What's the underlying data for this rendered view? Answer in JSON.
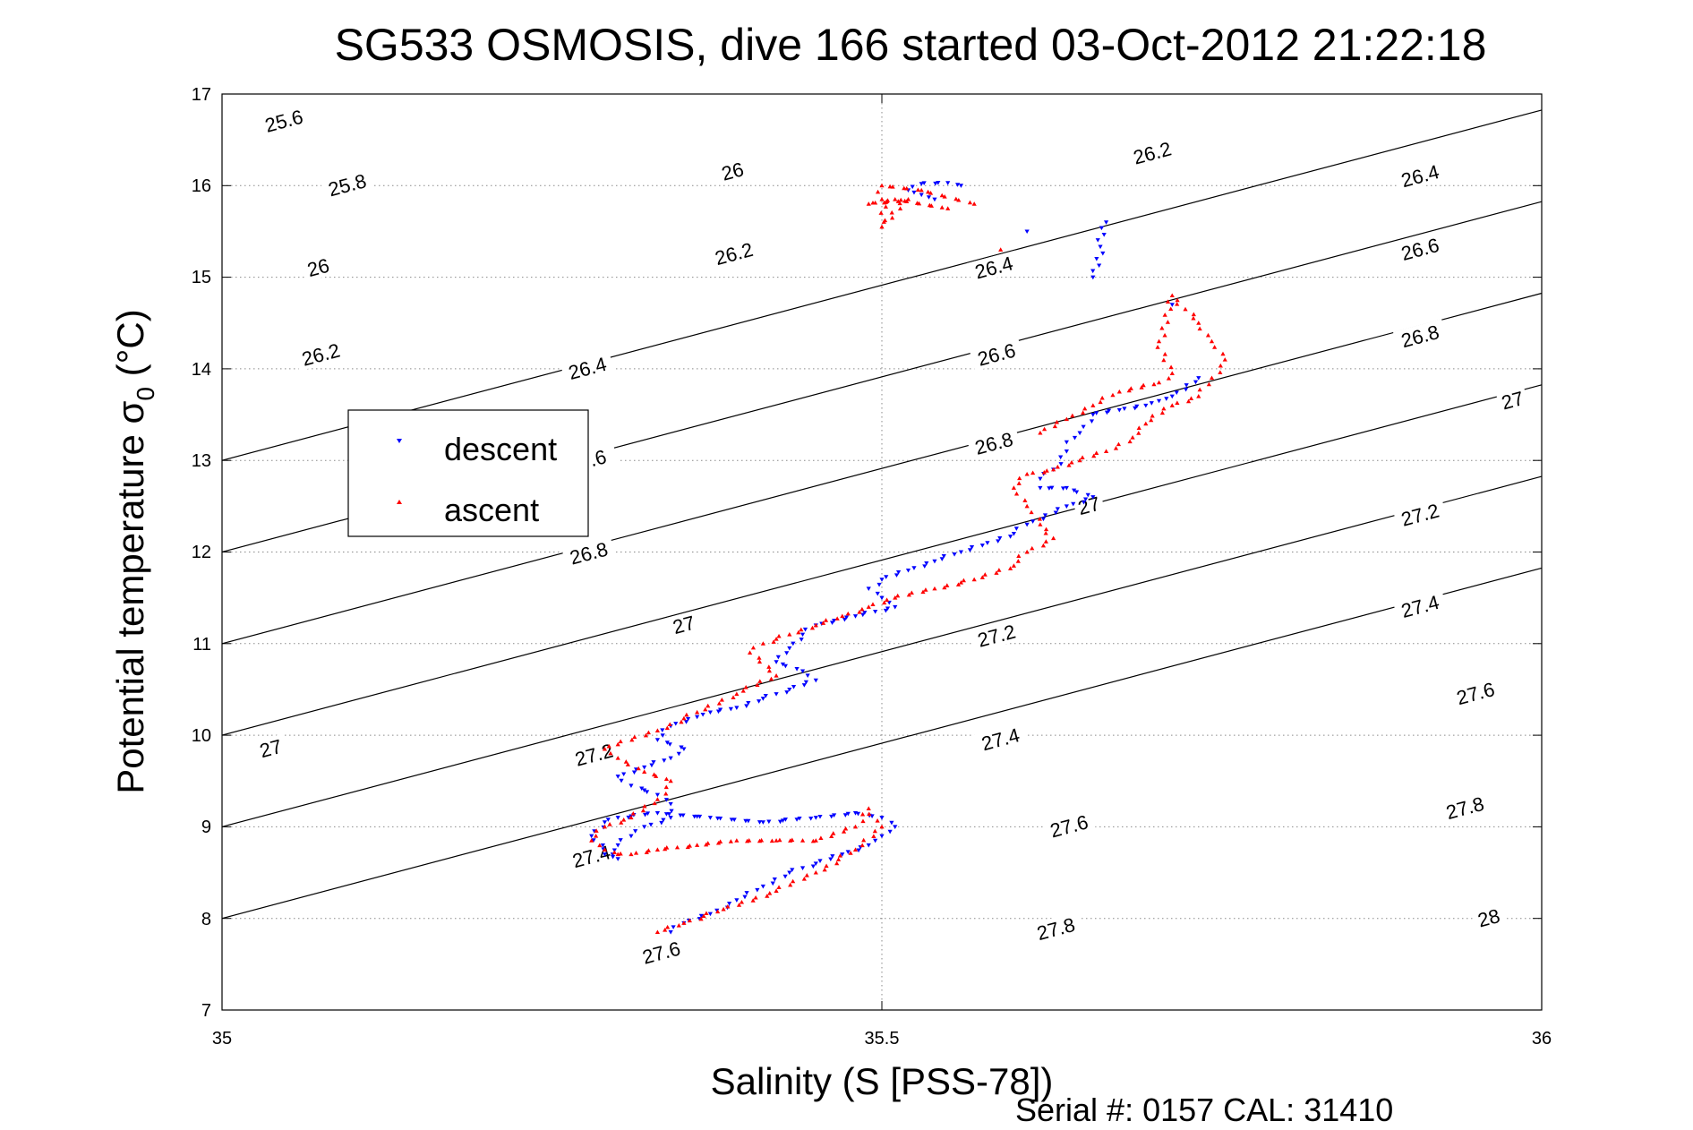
{
  "chart_data": {
    "type": "scatter",
    "title": "SG533 OSMOSIS, dive 166 started 03-Oct-2012 21:22:18",
    "xlabel": "Salinity (S [PSS-78])",
    "ylabel_main": "Potential temperature σ",
    "ylabel_sub": "0",
    "ylabel_unit": " (°C)",
    "xlim": [
      35,
      36
    ],
    "ylim": [
      7,
      17
    ],
    "xticks": [
      "35",
      "35.5",
      "36"
    ],
    "yticks": [
      "7",
      "8",
      "9",
      "10",
      "11",
      "12",
      "13",
      "14",
      "15",
      "16",
      "17"
    ],
    "grid": true,
    "legend_position": "upper-left",
    "footer": "Serial #: 0157  CAL: 31410",
    "density_contours": {
      "color": "#000000",
      "levels": [
        25.6,
        25.8,
        26,
        26.2,
        26.4,
        26.6,
        26.8,
        27,
        27.2,
        27.4,
        27.6,
        27.8,
        28
      ],
      "label_positions": [
        {
          "text": "25.6",
          "x": 35.047,
          "y": 16.7
        },
        {
          "text": "25.8",
          "x": 35.095,
          "y": 16.0
        },
        {
          "text": "26",
          "x": 35.073,
          "y": 15.1
        },
        {
          "text": "26.2",
          "x": 35.075,
          "y": 14.15
        },
        {
          "text": "26",
          "x": 35.387,
          "y": 16.15
        },
        {
          "text": "26.2",
          "x": 35.388,
          "y": 15.25
        },
        {
          "text": "26.4",
          "x": 35.277,
          "y": 14.0
        },
        {
          "text": "26.6",
          "x": 35.28,
          "y": 13.0
        },
        {
          "text": "26.8",
          "x": 35.278,
          "y": 11.98
        },
        {
          "text": "27",
          "x": 35.35,
          "y": 11.2
        },
        {
          "text": "27.2",
          "x": 35.282,
          "y": 9.78
        },
        {
          "text": "27.4",
          "x": 35.28,
          "y": 8.67
        },
        {
          "text": "27.6",
          "x": 35.333,
          "y": 7.62
        },
        {
          "text": "27",
          "x": 35.037,
          "y": 9.85
        },
        {
          "text": "26.2",
          "x": 35.705,
          "y": 16.35
        },
        {
          "text": "26.4",
          "x": 35.585,
          "y": 15.1
        },
        {
          "text": "26.6",
          "x": 35.587,
          "y": 14.15
        },
        {
          "text": "26.8",
          "x": 35.585,
          "y": 13.18
        },
        {
          "text": "27",
          "x": 35.657,
          "y": 12.5
        },
        {
          "text": "27.2",
          "x": 35.587,
          "y": 11.08
        },
        {
          "text": "27.4",
          "x": 35.59,
          "y": 9.95
        },
        {
          "text": "27.6",
          "x": 35.642,
          "y": 9.0
        },
        {
          "text": "27.8",
          "x": 35.632,
          "y": 7.88
        },
        {
          "text": "26.4",
          "x": 35.908,
          "y": 16.1
        },
        {
          "text": "26.6",
          "x": 35.908,
          "y": 15.3
        },
        {
          "text": "26.8",
          "x": 35.908,
          "y": 14.35
        },
        {
          "text": "27",
          "x": 35.978,
          "y": 13.65
        },
        {
          "text": "27.2",
          "x": 35.908,
          "y": 12.4
        },
        {
          "text": "27.4",
          "x": 35.908,
          "y": 11.4
        },
        {
          "text": "27.6",
          "x": 35.95,
          "y": 10.45
        },
        {
          "text": "27.8",
          "x": 35.942,
          "y": 9.2
        },
        {
          "text": "28",
          "x": 35.96,
          "y": 8.0
        },
        {
          "text": ".6",
          "x": 35.285,
          "y": 13.02
        }
      ]
    },
    "series": [
      {
        "name": "descent",
        "color": "#0000ff",
        "marker": "triangle-down",
        "x": [
          35.54,
          35.53,
          35.52,
          35.53,
          35.55,
          35.56,
          35.61,
          35.66,
          35.67,
          35.72,
          35.74,
          35.72,
          35.71,
          35.7,
          35.68,
          35.66,
          35.65,
          35.64,
          35.64,
          35.63,
          35.62,
          35.62,
          35.64,
          35.66,
          35.64,
          35.61,
          35.6,
          35.58,
          35.56,
          35.54,
          35.52,
          35.5,
          35.49,
          35.5,
          35.51,
          35.48,
          35.45,
          35.44,
          35.43,
          35.42,
          35.44,
          35.45,
          35.43,
          35.41,
          35.39,
          35.37,
          35.36,
          35.34,
          35.33,
          35.35,
          35.34,
          35.32,
          35.3,
          35.31,
          35.33,
          35.34,
          35.34,
          35.32,
          35.31,
          35.3,
          35.29,
          35.3,
          35.28,
          35.29,
          35.3,
          35.33,
          35.37,
          35.41,
          35.45,
          35.48,
          35.5,
          35.51,
          35.5,
          35.49,
          35.47,
          35.45,
          35.43,
          35.41,
          35.39,
          35.37,
          35.35,
          35.34
        ],
        "y": [
          15.85,
          15.9,
          15.95,
          16.02,
          16.03,
          16.0,
          15.5,
          15.0,
          15.6,
          14.7,
          13.9,
          13.7,
          13.65,
          13.6,
          13.55,
          13.5,
          13.3,
          13.2,
          13.1,
          12.9,
          12.8,
          12.7,
          12.7,
          12.6,
          12.5,
          12.3,
          12.2,
          12.1,
          12.0,
          11.9,
          11.8,
          11.7,
          11.6,
          11.5,
          11.4,
          11.3,
          11.2,
          11.1,
          10.95,
          10.8,
          10.7,
          10.6,
          10.5,
          10.4,
          10.3,
          10.25,
          10.2,
          10.1,
          9.95,
          9.85,
          9.75,
          9.65,
          9.55,
          9.45,
          9.35,
          9.25,
          9.1,
          9.0,
          8.9,
          8.8,
          8.7,
          8.65,
          8.9,
          9.05,
          9.1,
          9.15,
          9.1,
          9.05,
          9.1,
          9.15,
          9.1,
          9.0,
          8.9,
          8.8,
          8.7,
          8.6,
          8.5,
          8.35,
          8.2,
          8.05,
          7.95,
          7.85
        ]
      },
      {
        "name": "ascent",
        "color": "#ff0000",
        "marker": "triangle-up",
        "x": [
          35.33,
          35.35,
          35.38,
          35.42,
          35.45,
          35.48,
          35.5,
          35.49,
          35.48,
          35.45,
          35.42,
          35.39,
          35.36,
          35.33,
          35.31,
          35.3,
          35.29,
          35.28,
          35.29,
          35.31,
          35.33,
          35.34,
          35.32,
          35.3,
          35.29,
          35.3,
          35.33,
          35.36,
          35.39,
          35.42,
          35.4,
          35.41,
          35.43,
          35.45,
          35.47,
          35.49,
          35.51,
          35.54,
          35.57,
          35.6,
          35.61,
          35.63,
          35.62,
          35.61,
          35.6,
          35.61,
          35.63,
          35.65,
          35.67,
          35.69,
          35.7,
          35.72,
          35.74,
          35.75,
          35.76,
          35.75,
          35.74,
          35.72,
          35.71,
          35.72,
          35.71,
          35.68,
          35.66,
          35.64,
          35.62,
          35.59,
          35.55,
          35.51,
          35.49,
          35.52,
          35.5,
          35.5,
          35.53,
          35.57
        ],
        "y": [
          7.85,
          7.95,
          8.1,
          8.3,
          8.5,
          8.75,
          9.0,
          9.2,
          9.0,
          8.85,
          8.85,
          8.85,
          8.8,
          8.75,
          8.7,
          8.7,
          8.75,
          8.85,
          9.0,
          9.1,
          9.3,
          9.5,
          9.6,
          9.75,
          9.85,
          9.9,
          10.05,
          10.25,
          10.45,
          10.65,
          10.9,
          11.0,
          11.1,
          11.2,
          11.3,
          11.4,
          11.5,
          11.6,
          11.7,
          11.85,
          12.0,
          12.15,
          12.3,
          12.5,
          12.7,
          12.85,
          12.9,
          13.0,
          13.1,
          13.25,
          13.4,
          13.6,
          13.7,
          13.9,
          14.1,
          14.3,
          14.5,
          14.8,
          14.3,
          13.95,
          13.85,
          13.75,
          13.6,
          13.45,
          13.3,
          15.3,
          15.75,
          15.85,
          15.8,
          15.85,
          15.55,
          16.0,
          15.95,
          15.8
        ]
      }
    ]
  }
}
